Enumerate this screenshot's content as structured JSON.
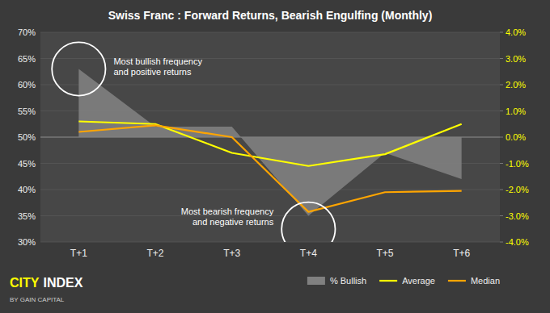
{
  "chart_data": {
    "type": "line",
    "title": "Swiss Franc : Forward Returns, Bearish Engulfing (Monthly)",
    "categories": [
      "T+1",
      "T+2",
      "T+3",
      "T+4",
      "T+5",
      "T+6"
    ],
    "series": [
      {
        "name": "% Bullish",
        "type": "area",
        "color": "#808080",
        "baseline": 50,
        "values": [
          63,
          52,
          52,
          35,
          47,
          42
        ]
      },
      {
        "name": "Average",
        "type": "line",
        "color": "#ffff00",
        "axis": "y2",
        "values": [
          0.6,
          0.5,
          -0.6,
          -1.1,
          -0.65,
          0.5
        ]
      },
      {
        "name": "Median",
        "type": "line",
        "color": "#ffa500",
        "axis": "y2",
        "values": [
          0.2,
          0.45,
          0.0,
          -2.85,
          -2.1,
          -2.05
        ]
      }
    ],
    "ylim": [
      30,
      70
    ],
    "yticks": [
      {
        "value": 30,
        "label": "30%"
      },
      {
        "value": 35,
        "label": "35%"
      },
      {
        "value": 40,
        "label": "40%"
      },
      {
        "value": 45,
        "label": "45%"
      },
      {
        "value": 50,
        "label": "50%"
      },
      {
        "value": 55,
        "label": "55%"
      },
      {
        "value": 60,
        "label": "60%"
      },
      {
        "value": 65,
        "label": "65%"
      },
      {
        "value": 70,
        "label": "70%"
      }
    ],
    "y2lim": [
      -4.0,
      4.0
    ],
    "y2ticks": [
      {
        "value": -4.0,
        "label": "-4.0%"
      },
      {
        "value": -3.0,
        "label": "-3.0%"
      },
      {
        "value": -2.0,
        "label": "-2.0%"
      },
      {
        "value": -1.0,
        "label": "-1.0%"
      },
      {
        "value": 0.0,
        "label": "0.0%"
      },
      {
        "value": 1.0,
        "label": "1.0%"
      },
      {
        "value": 2.0,
        "label": "2.0%"
      },
      {
        "value": 3.0,
        "label": "3.0%"
      },
      {
        "value": 4.0,
        "label": "4.0%"
      }
    ],
    "grid": true,
    "legend": "bottom",
    "annotations": [
      {
        "text": "Most bullish frequency\nand positive returns",
        "x": "T+1",
        "y": 63
      },
      {
        "text": "Most bearish frequency\nand negative returns",
        "x": "T+4",
        "y": 32.5
      },
      {
        "text": "CITY",
        "color": "#ffff00"
      },
      {
        "text": "INDEX",
        "color": "#ffffff"
      },
      {
        "text": "BY GAIN CAPITAL",
        "color": "#cccccc"
      }
    ]
  }
}
